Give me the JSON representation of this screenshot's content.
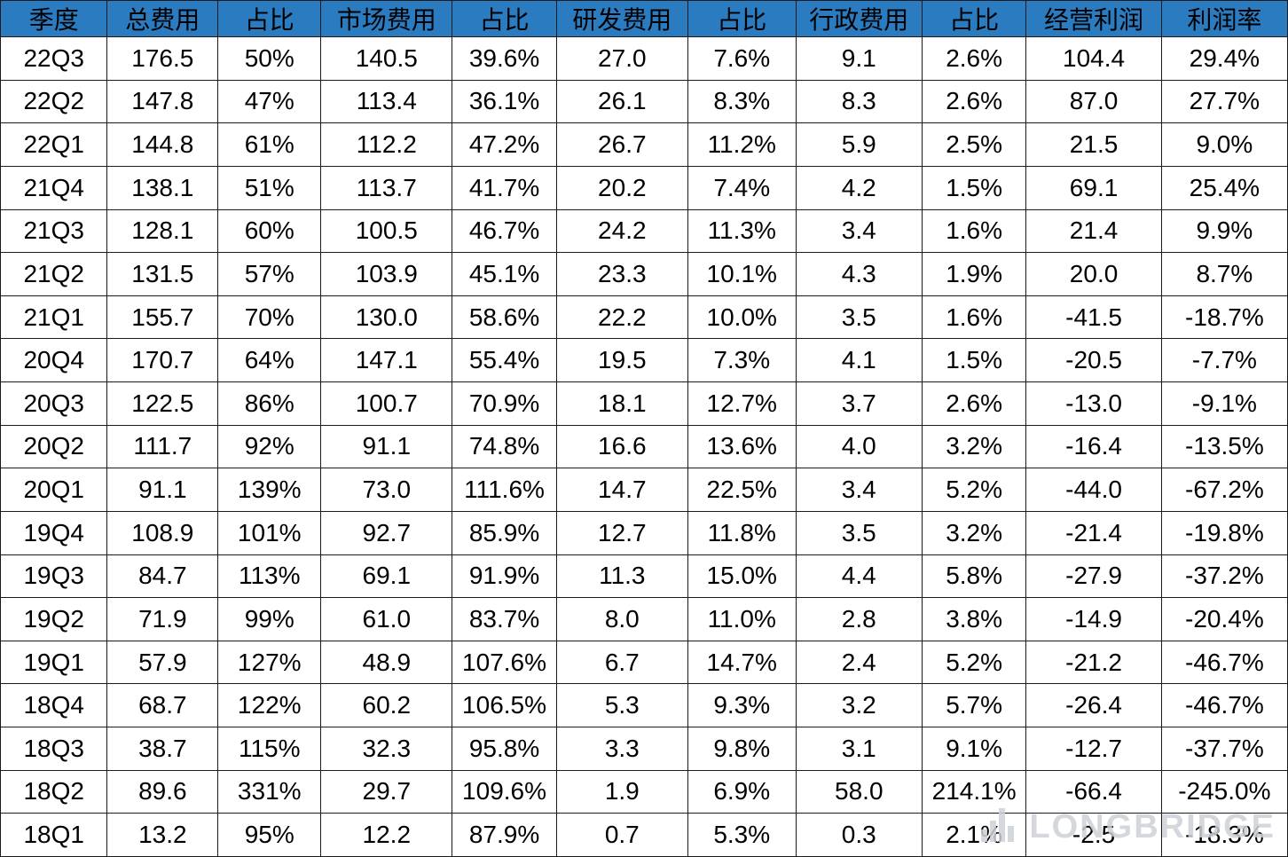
{
  "chart_data": {
    "type": "table",
    "title": "",
    "columns": [
      "季度",
      "总费用",
      "占比",
      "市场费用",
      "占比",
      "研发费用",
      "占比",
      "行政费用",
      "占比",
      "经营利润",
      "利润率"
    ],
    "rows": [
      [
        "22Q3",
        "176.5",
        "50%",
        "140.5",
        "39.6%",
        "27.0",
        "7.6%",
        "9.1",
        "2.6%",
        "104.4",
        "29.4%"
      ],
      [
        "22Q2",
        "147.8",
        "47%",
        "113.4",
        "36.1%",
        "26.1",
        "8.3%",
        "8.3",
        "2.6%",
        "87.0",
        "27.7%"
      ],
      [
        "22Q1",
        "144.8",
        "61%",
        "112.2",
        "47.2%",
        "26.7",
        "11.2%",
        "5.9",
        "2.5%",
        "21.5",
        "9.0%"
      ],
      [
        "21Q4",
        "138.1",
        "51%",
        "113.7",
        "41.7%",
        "20.2",
        "7.4%",
        "4.2",
        "1.5%",
        "69.1",
        "25.4%"
      ],
      [
        "21Q3",
        "128.1",
        "60%",
        "100.5",
        "46.7%",
        "24.2",
        "11.3%",
        "3.4",
        "1.6%",
        "21.4",
        "9.9%"
      ],
      [
        "21Q2",
        "131.5",
        "57%",
        "103.9",
        "45.1%",
        "23.3",
        "10.1%",
        "4.3",
        "1.9%",
        "20.0",
        "8.7%"
      ],
      [
        "21Q1",
        "155.7",
        "70%",
        "130.0",
        "58.6%",
        "22.2",
        "10.0%",
        "3.5",
        "1.6%",
        "-41.5",
        "-18.7%"
      ],
      [
        "20Q4",
        "170.7",
        "64%",
        "147.1",
        "55.4%",
        "19.5",
        "7.3%",
        "4.1",
        "1.5%",
        "-20.5",
        "-7.7%"
      ],
      [
        "20Q3",
        "122.5",
        "86%",
        "100.7",
        "70.9%",
        "18.1",
        "12.7%",
        "3.7",
        "2.6%",
        "-13.0",
        "-9.1%"
      ],
      [
        "20Q2",
        "111.7",
        "92%",
        "91.1",
        "74.8%",
        "16.6",
        "13.6%",
        "4.0",
        "3.2%",
        "-16.4",
        "-13.5%"
      ],
      [
        "20Q1",
        "91.1",
        "139%",
        "73.0",
        "111.6%",
        "14.7",
        "22.5%",
        "3.4",
        "5.2%",
        "-44.0",
        "-67.2%"
      ],
      [
        "19Q4",
        "108.9",
        "101%",
        "92.7",
        "85.9%",
        "12.7",
        "11.8%",
        "3.5",
        "3.2%",
        "-21.4",
        "-19.8%"
      ],
      [
        "19Q3",
        "84.7",
        "113%",
        "69.1",
        "91.9%",
        "11.3",
        "15.0%",
        "4.4",
        "5.8%",
        "-27.9",
        "-37.2%"
      ],
      [
        "19Q2",
        "71.9",
        "99%",
        "61.0",
        "83.7%",
        "8.0",
        "11.0%",
        "2.8",
        "3.8%",
        "-14.9",
        "-20.4%"
      ],
      [
        "19Q1",
        "57.9",
        "127%",
        "48.9",
        "107.6%",
        "6.7",
        "14.7%",
        "2.4",
        "5.2%",
        "-21.2",
        "-46.7%"
      ],
      [
        "18Q4",
        "68.7",
        "122%",
        "60.2",
        "106.5%",
        "5.3",
        "9.3%",
        "3.2",
        "5.7%",
        "-26.4",
        "-46.7%"
      ],
      [
        "18Q3",
        "38.7",
        "115%",
        "32.3",
        "95.8%",
        "3.3",
        "9.8%",
        "3.1",
        "9.1%",
        "-12.7",
        "-37.7%"
      ],
      [
        "18Q2",
        "89.6",
        "331%",
        "29.7",
        "109.6%",
        "1.9",
        "6.9%",
        "58.0",
        "214.1%",
        "-66.4",
        "-245.0%"
      ],
      [
        "18Q1",
        "13.2",
        "95%",
        "12.2",
        "87.9%",
        "0.7",
        "5.3%",
        "0.3",
        "2.1%",
        "-2.5",
        "-18.3%"
      ]
    ],
    "layout_hints": {
      "header_bg": "#2b7bc0",
      "grid": true,
      "text_color": "#000000"
    }
  },
  "watermark": {
    "text": "LONGBRIDGE",
    "color": "#cdd1d6",
    "icon": "bar-chart-logo"
  }
}
